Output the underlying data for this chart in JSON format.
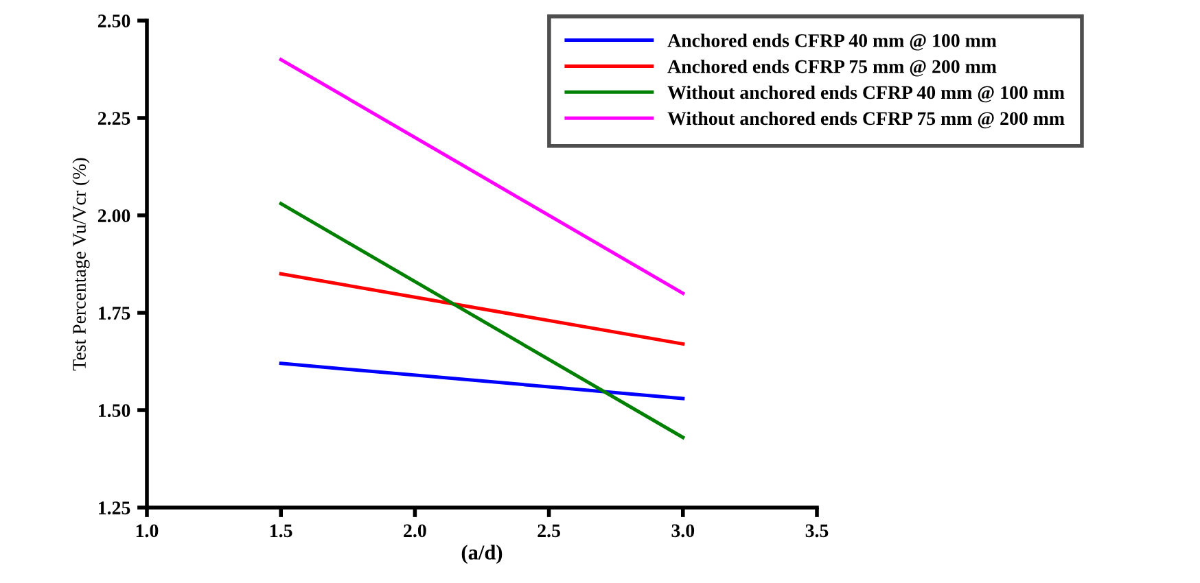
{
  "chart_data": {
    "type": "line",
    "xlabel": "(a/d)",
    "ylabel": "Test Percentage Vu/Vcr (%)",
    "x": [
      1.5,
      3.0
    ],
    "series": [
      {
        "name": "Anchored ends CFRP 40 mm @ 100 mm",
        "color": "#0000ff",
        "values": [
          1.62,
          1.53
        ]
      },
      {
        "name": "Anchored ends CFRP 75 mm @ 200 mm",
        "color": "#ff0000",
        "values": [
          1.85,
          1.67
        ]
      },
      {
        "name": "Without anchored ends CFRP 40 mm @ 100 mm",
        "color": "#008000",
        "values": [
          2.03,
          1.43
        ]
      },
      {
        "name": "Without anchored ends CFRP 75 mm @ 200 mm",
        "color": "#ff00ff",
        "values": [
          2.4,
          1.8
        ]
      }
    ],
    "xlim": [
      1.0,
      3.5
    ],
    "xticks": [
      {
        "value": 1.0,
        "label": "1.0"
      },
      1.5,
      {
        "value": 2.0,
        "label": "2.0"
      },
      2.5,
      {
        "value": 3.0,
        "label": "3.0"
      },
      3.5
    ],
    "ylim": [
      1.25,
      2.5
    ],
    "yticks": [
      1.25,
      {
        "value": 1.5,
        "label": "1.50"
      },
      1.75,
      {
        "value": 2.0,
        "label": "2.00"
      },
      2.25,
      {
        "value": 2.5,
        "label": "2.50"
      }
    ],
    "grid": false,
    "legend": "top right",
    "marker": "none",
    "line_style": "solid"
  }
}
